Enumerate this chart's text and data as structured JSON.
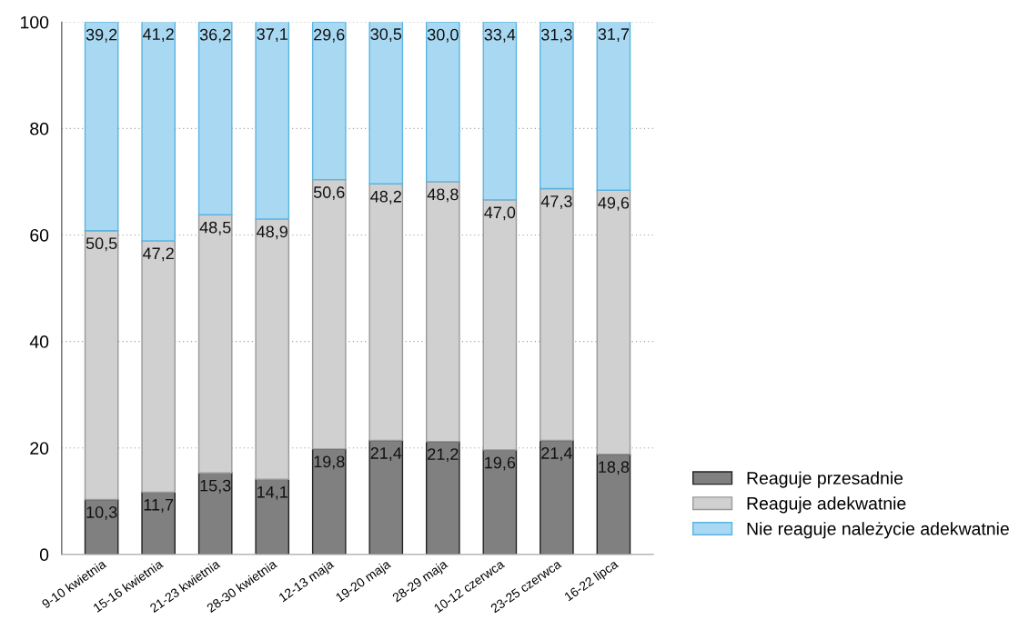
{
  "chart_data": {
    "type": "bar",
    "stacked": true,
    "categories": [
      "9-10 kwietnia",
      "15-16 kwietnia",
      "21-23 kwietnia",
      "28-30 kwietnia",
      "12-13 maja",
      "19-20 maja",
      "28-29 maja",
      "10-12 czerwca",
      "23-25 czerwca",
      "16-22 lipca"
    ],
    "series": [
      {
        "name": "Reaguje przesadnie",
        "color": "#808080",
        "values": [
          10.3,
          11.7,
          15.3,
          14.1,
          19.8,
          21.4,
          21.2,
          19.6,
          21.4,
          18.8
        ],
        "value_labels": [
          "10,3",
          "11,7",
          "15,3",
          "14,1",
          "19,8",
          "21,4",
          "21,2",
          "19,6",
          "21,4",
          "18,8"
        ]
      },
      {
        "name": "Reaguje adekwatnie",
        "color": "#d0d0d0",
        "values": [
          50.5,
          47.2,
          48.5,
          48.9,
          50.6,
          48.2,
          48.8,
          47.0,
          47.3,
          49.6
        ],
        "value_labels": [
          "50,5",
          "47,2",
          "48,5",
          "48,9",
          "50,6",
          "48,2",
          "48,8",
          "47,0",
          "47,3",
          "49,6"
        ]
      },
      {
        "name": "Nie reaguje należycie adekwatnie",
        "color": "#a9d9f2",
        "values": [
          39.2,
          41.2,
          36.2,
          37.1,
          29.6,
          30.5,
          30.0,
          33.4,
          31.3,
          31.7
        ],
        "value_labels": [
          "39,2",
          "41,2",
          "36,2",
          "37,1",
          "29,6",
          "30,5",
          "30,0",
          "33,4",
          "31,3",
          "31,7"
        ]
      }
    ],
    "ylim": [
      0,
      100
    ],
    "yticks": [
      0,
      20,
      40,
      60,
      80,
      100
    ],
    "grid": "y",
    "legend": "bottom right"
  }
}
